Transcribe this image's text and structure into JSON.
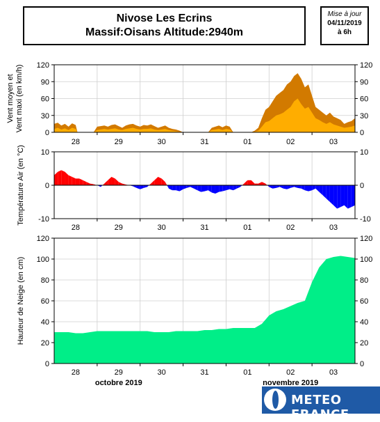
{
  "header": {
    "title_line1": "Nivose Les Ecrins",
    "title_line2": "Massif:Oisans Altitude:2940m",
    "update_label": "Mise à jour",
    "update_date": "04/11/2019",
    "update_time": "à 6h"
  },
  "logo": {
    "text": "METEO FRANCE"
  },
  "months": [
    "octobre 2019",
    "novembre 2019"
  ],
  "colors": {
    "wind_max": "#d27a00",
    "wind_mean": "#ffad00",
    "temp_pos": "#ff0000",
    "temp_neg": "#0000ff",
    "snow": "#00ee88",
    "logo_bg": "#1f5aa6"
  },
  "chart_data": [
    {
      "type": "area",
      "ylabel_line1": "Vent moyen et",
      "ylabel_line2": "Vent maxi (en km/h)",
      "ylim": [
        0,
        120
      ],
      "yticks": [
        0,
        30,
        60,
        90,
        120
      ],
      "xlim": [
        0,
        168
      ],
      "xtick_labels": [
        "28",
        "29",
        "30",
        "31",
        "01",
        "02",
        "03"
      ],
      "series": [
        {
          "x": [
            0,
            2,
            4,
            6,
            8,
            10,
            12,
            13,
            16,
            18,
            20,
            22,
            24,
            26,
            28,
            30,
            32,
            34,
            36,
            38,
            40,
            42,
            44,
            46,
            48,
            50,
            52,
            54,
            56,
            58,
            60,
            62,
            64,
            66,
            68,
            70,
            72,
            74,
            76,
            78,
            80,
            82,
            84,
            86,
            88,
            90,
            92,
            94,
            96,
            98,
            100,
            102,
            104,
            106,
            108,
            110,
            112,
            114,
            116,
            118,
            120,
            122,
            124,
            126,
            128,
            130,
            132,
            134,
            136,
            138,
            140,
            142,
            144,
            146,
            148,
            150,
            152,
            154,
            156,
            158,
            160,
            162,
            164,
            166,
            168
          ],
          "values": [
            15,
            17,
            12,
            15,
            10,
            16,
            13,
            0,
            0,
            0,
            0,
            0,
            10,
            11,
            12,
            10,
            13,
            14,
            11,
            8,
            12,
            14,
            15,
            12,
            10,
            13,
            12,
            14,
            11,
            8,
            10,
            12,
            8,
            6,
            5,
            3,
            0,
            0,
            0,
            0,
            0,
            0,
            0,
            0,
            8,
            10,
            12,
            9,
            12,
            10,
            0,
            0,
            0,
            0,
            0,
            0,
            3,
            8,
            25,
            40,
            45,
            55,
            65,
            70,
            75,
            85,
            90,
            100,
            105,
            95,
            80,
            85,
            65,
            45,
            40,
            35,
            30,
            35,
            28,
            25,
            22,
            15,
            18,
            20,
            25
          ]
        },
        {
          "x": [
            0,
            2,
            4,
            6,
            8,
            10,
            12,
            13,
            16,
            18,
            20,
            22,
            24,
            26,
            28,
            30,
            32,
            34,
            36,
            38,
            40,
            42,
            44,
            46,
            48,
            50,
            52,
            54,
            56,
            58,
            60,
            62,
            64,
            66,
            68,
            70,
            72,
            74,
            76,
            78,
            80,
            82,
            84,
            86,
            88,
            90,
            92,
            94,
            96,
            98,
            100,
            102,
            104,
            106,
            108,
            110,
            112,
            114,
            116,
            118,
            120,
            122,
            124,
            126,
            128,
            130,
            132,
            134,
            136,
            138,
            140,
            142,
            144,
            146,
            148,
            150,
            152,
            154,
            156,
            158,
            160,
            162,
            164,
            166,
            168
          ],
          "values": [
            6,
            8,
            5,
            7,
            4,
            8,
            6,
            0,
            0,
            0,
            0,
            0,
            4,
            5,
            6,
            5,
            6,
            7,
            5,
            4,
            6,
            7,
            8,
            6,
            5,
            6,
            6,
            7,
            5,
            4,
            5,
            6,
            4,
            3,
            2,
            1,
            0,
            0,
            0,
            0,
            0,
            0,
            0,
            0,
            4,
            5,
            6,
            4,
            6,
            5,
            0,
            0,
            0,
            0,
            0,
            0,
            1,
            3,
            10,
            18,
            20,
            25,
            30,
            32,
            35,
            40,
            45,
            55,
            60,
            50,
            42,
            45,
            35,
            25,
            22,
            18,
            15,
            18,
            14,
            12,
            10,
            8,
            9,
            10,
            12
          ]
        }
      ]
    },
    {
      "type": "area",
      "ylabel_line1": "Température Air (en °C)",
      "ylim": [
        -10,
        10
      ],
      "yticks": [
        -10,
        0,
        10
      ],
      "xlim": [
        0,
        168
      ],
      "xtick_labels": [
        "28",
        "29",
        "30",
        "31",
        "01",
        "02",
        "03"
      ],
      "series": [
        {
          "x": [
            0,
            2,
            4,
            6,
            8,
            10,
            12,
            14,
            16,
            18,
            20,
            22,
            24,
            26,
            28,
            30,
            32,
            34,
            36,
            38,
            40,
            42,
            44,
            46,
            48,
            50,
            52,
            54,
            56,
            58,
            60,
            62,
            64,
            66,
            68,
            70,
            72,
            74,
            76,
            78,
            80,
            82,
            84,
            86,
            88,
            90,
            92,
            94,
            96,
            98,
            100,
            102,
            104,
            106,
            108,
            110,
            112,
            114,
            116,
            118,
            120,
            122,
            124,
            126,
            128,
            130,
            132,
            134,
            136,
            138,
            140,
            142,
            144,
            146,
            148,
            150,
            152,
            154,
            156,
            158,
            160,
            162,
            164,
            166,
            168
          ],
          "values": [
            3,
            4,
            4.5,
            4,
            3,
            2.5,
            2,
            2,
            1.5,
            1,
            0.5,
            0.3,
            0,
            -0.5,
            0.5,
            1.5,
            2.5,
            2,
            1,
            0.5,
            0.2,
            0,
            -0.3,
            -0.8,
            -1.2,
            -0.8,
            -0.5,
            0.5,
            1.5,
            2.5,
            2,
            1,
            -1,
            -1.5,
            -1.5,
            -1.8,
            -1.2,
            -0.8,
            -0.5,
            -1,
            -1.5,
            -2,
            -1.8,
            -1.5,
            -2.2,
            -2.5,
            -2,
            -1.8,
            -1.5,
            -1.2,
            -1.5,
            -1,
            -0.5,
            0.5,
            1.5,
            1.5,
            0.5,
            0.5,
            1,
            0.5,
            -0.5,
            -1,
            -0.8,
            -0.5,
            -1,
            -1.2,
            -0.8,
            -0.5,
            -0.8,
            -1,
            -1.5,
            -1.8,
            -1.5,
            -1,
            -2,
            -3,
            -4,
            -5,
            -6,
            -7,
            -6.5,
            -6,
            -7,
            -6.5,
            -6
          ]
        }
      ]
    },
    {
      "type": "area",
      "ylabel_line1": "Hauteur de Neige (en cm)",
      "ylim": [
        0,
        120
      ],
      "yticks": [
        0,
        20,
        40,
        60,
        80,
        100,
        120
      ],
      "xlim": [
        0,
        168
      ],
      "xtick_labels": [
        "28",
        "29",
        "30",
        "31",
        "01",
        "02",
        "03"
      ],
      "series": [
        {
          "x": [
            0,
            4,
            8,
            12,
            16,
            20,
            24,
            28,
            32,
            36,
            40,
            44,
            48,
            52,
            56,
            60,
            64,
            68,
            72,
            76,
            80,
            84,
            88,
            92,
            96,
            100,
            104,
            108,
            112,
            116,
            120,
            124,
            128,
            132,
            136,
            140,
            144,
            148,
            152,
            156,
            160,
            164,
            168
          ],
          "values": [
            30,
            30,
            30,
            29,
            29,
            30,
            31,
            31,
            31,
            31,
            31,
            31,
            31,
            31,
            30,
            30,
            30,
            31,
            31,
            31,
            31,
            32,
            32,
            33,
            33,
            34,
            34,
            34,
            34,
            38,
            46,
            50,
            52,
            55,
            58,
            60,
            78,
            92,
            100,
            102,
            103,
            102,
            101
          ]
        }
      ]
    }
  ]
}
